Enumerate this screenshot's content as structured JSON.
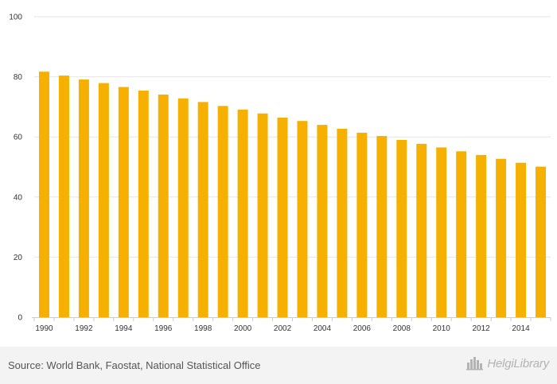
{
  "chart_data": {
    "type": "bar",
    "title": "",
    "xlabel": "",
    "ylabel": "",
    "categories": [
      "1990",
      "1991",
      "1992",
      "1993",
      "1994",
      "1995",
      "1996",
      "1997",
      "1998",
      "1999",
      "2000",
      "2001",
      "2002",
      "2003",
      "2004",
      "2005",
      "2006",
      "2007",
      "2008",
      "2009",
      "2010",
      "2011",
      "2012",
      "2013",
      "2014",
      "2015"
    ],
    "x_tick_labels": [
      "1990",
      "1992",
      "1994",
      "1996",
      "1998",
      "2000",
      "2002",
      "2004",
      "2006",
      "2008",
      "2010",
      "2012",
      "2014"
    ],
    "values": [
      81.7,
      80.4,
      79.1,
      77.9,
      76.6,
      75.4,
      74.1,
      72.8,
      71.6,
      70.3,
      69.1,
      67.8,
      66.4,
      65.3,
      64.0,
      62.7,
      61.4,
      60.3,
      59.0,
      57.7,
      56.5,
      55.2,
      54.0,
      52.7,
      51.4,
      50.1
    ],
    "ylim": [
      0,
      100
    ],
    "y_ticks": [
      0,
      20,
      40,
      60,
      80,
      100
    ],
    "grid": true,
    "bar_color": "#f5b000",
    "grid_color": "#e6e6e6",
    "axis_color": "#cccccc"
  },
  "footer": {
    "source": "Source: World Bank, Faostat, National Statistical Office",
    "brand": "HelgiLibrary",
    "brand_color": "#b3b3b3",
    "brand_icon": "city-skyline-icon"
  }
}
